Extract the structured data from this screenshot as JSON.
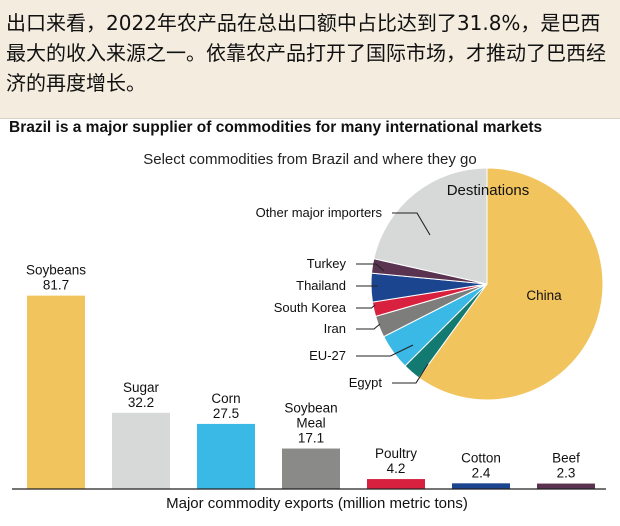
{
  "caption": "出口来看，2022年农产品在总出口额中占比达到了31.8%，是巴西最大的收入来源之一。依靠农产品打开了国际市场，才推动了巴西经济的再度增长。",
  "chart_data": [
    {
      "type": "bar",
      "title": "Brazil is a major supplier of commodities for many international markets",
      "subtitle": "Select commodities from Brazil and where they go",
      "xlabel": "Major commodity exports (million metric tons)",
      "categories": [
        {
          "line1": "Soybeans",
          "line2": ""
        },
        {
          "line1": "Sugar",
          "line2": ""
        },
        {
          "line1": "Corn",
          "line2": ""
        },
        {
          "line1": "Soybean",
          "line2": "Meal"
        },
        {
          "line1": "Poultry",
          "line2": ""
        },
        {
          "line1": "Cotton",
          "line2": ""
        },
        {
          "line1": "Beef",
          "line2": ""
        }
      ],
      "values": [
        81.7,
        32.2,
        27.5,
        17.1,
        4.2,
        2.4,
        2.3
      ],
      "value_labels": [
        "81.7",
        "32.2",
        "27.5",
        "17.1",
        "4.2",
        "2.4",
        "2.3"
      ],
      "colors": [
        "#f2c45d",
        "#d7d8d8",
        "#3ab8e6",
        "#8a8a88",
        "#d8203f",
        "#1c4590",
        "#5a3350"
      ],
      "ylim": [
        0,
        90
      ]
    },
    {
      "type": "pie",
      "title": "Destinations",
      "slices": [
        {
          "label": "China",
          "value": 60,
          "color": "#f2c45d"
        },
        {
          "label": "Egypt",
          "value": 2.5,
          "color": "#137a72"
        },
        {
          "label": "EU-27",
          "value": 5,
          "color": "#3ab8e6"
        },
        {
          "label": "Iran",
          "value": 3,
          "color": "#7d7d7b"
        },
        {
          "label": "South Korea",
          "value": 2,
          "color": "#d8203f"
        },
        {
          "label": "Thailand",
          "value": 4,
          "color": "#1c4590"
        },
        {
          "label": "Turkey",
          "value": 2,
          "color": "#5a3350"
        },
        {
          "label": "Other major importers",
          "value": 21.5,
          "color": "#d7d8d8"
        }
      ]
    }
  ]
}
